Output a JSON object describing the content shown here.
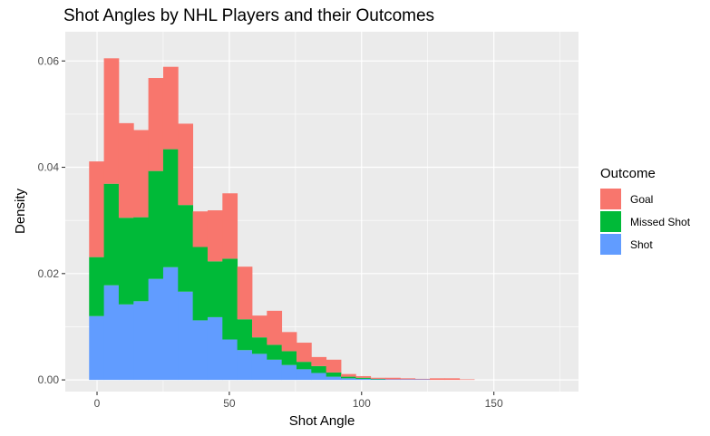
{
  "chart_data": {
    "type": "area",
    "title": "Shot Angles by NHL Players and their Outcomes",
    "xlabel": "Shot Angle",
    "ylabel": "Density",
    "xlim": [
      -12,
      182
    ],
    "ylim": [
      -0.0022,
      0.0655
    ],
    "x_ticks": [
      0,
      50,
      100,
      150
    ],
    "x_tick_labels": [
      "0",
      "50",
      "100",
      "150"
    ],
    "y_ticks": [
      0.0,
      0.02,
      0.04,
      0.06
    ],
    "y_tick_labels": [
      "0.00",
      "0.02",
      "0.04",
      "0.06"
    ],
    "grid": true,
    "stacked": true,
    "bin_width": 5.6,
    "bin_starts": [
      -3,
      2.6,
      8.2,
      13.8,
      19.4,
      25,
      30.6,
      36.2,
      41.8,
      47.4,
      53,
      58.6,
      64.2,
      69.8,
      75.4,
      81,
      86.6,
      92.2,
      97.8,
      103.4,
      109,
      114.6,
      120.2,
      125.8,
      131.4,
      137
    ],
    "series": [
      {
        "name": "Shot",
        "color": "#619CFF",
        "values": [
          0.012,
          0.0178,
          0.0142,
          0.0148,
          0.019,
          0.0212,
          0.0166,
          0.0112,
          0.0118,
          0.0076,
          0.0056,
          0.0049,
          0.0038,
          0.0028,
          0.002,
          0.0013,
          0.0006,
          0.0003,
          0.0002,
          0.0001,
          0.0001,
          0.0001,
          0.0001,
          0,
          0,
          0
        ]
      },
      {
        "name": "Missed Shot",
        "color": "#00BA38",
        "values": [
          0.0111,
          0.0191,
          0.0163,
          0.0158,
          0.0203,
          0.0222,
          0.0163,
          0.0138,
          0.0105,
          0.0152,
          0.0058,
          0.0031,
          0.0028,
          0.0026,
          0.0014,
          0.0013,
          0.0008,
          0.0003,
          0.0002,
          0.0001,
          0,
          0,
          0,
          0,
          0,
          0
        ]
      },
      {
        "name": "Goal",
        "color": "#F8766D",
        "values": [
          0.018,
          0.0236,
          0.0178,
          0.0164,
          0.0175,
          0.0155,
          0.0153,
          0.0067,
          0.0096,
          0.0123,
          0.0099,
          0.0041,
          0.0064,
          0.0036,
          0.0036,
          0.0017,
          0.0024,
          0.0005,
          0.0003,
          0.0002,
          0.0003,
          0.0002,
          0.0001,
          0.0003,
          0.0003,
          0.0001
        ]
      }
    ],
    "legend": {
      "title": "Outcome",
      "position": "right",
      "items": [
        {
          "label": "Goal",
          "color": "#F8766D"
        },
        {
          "label": "Missed Shot",
          "color": "#00BA38"
        },
        {
          "label": "Shot",
          "color": "#619CFF"
        }
      ]
    }
  }
}
